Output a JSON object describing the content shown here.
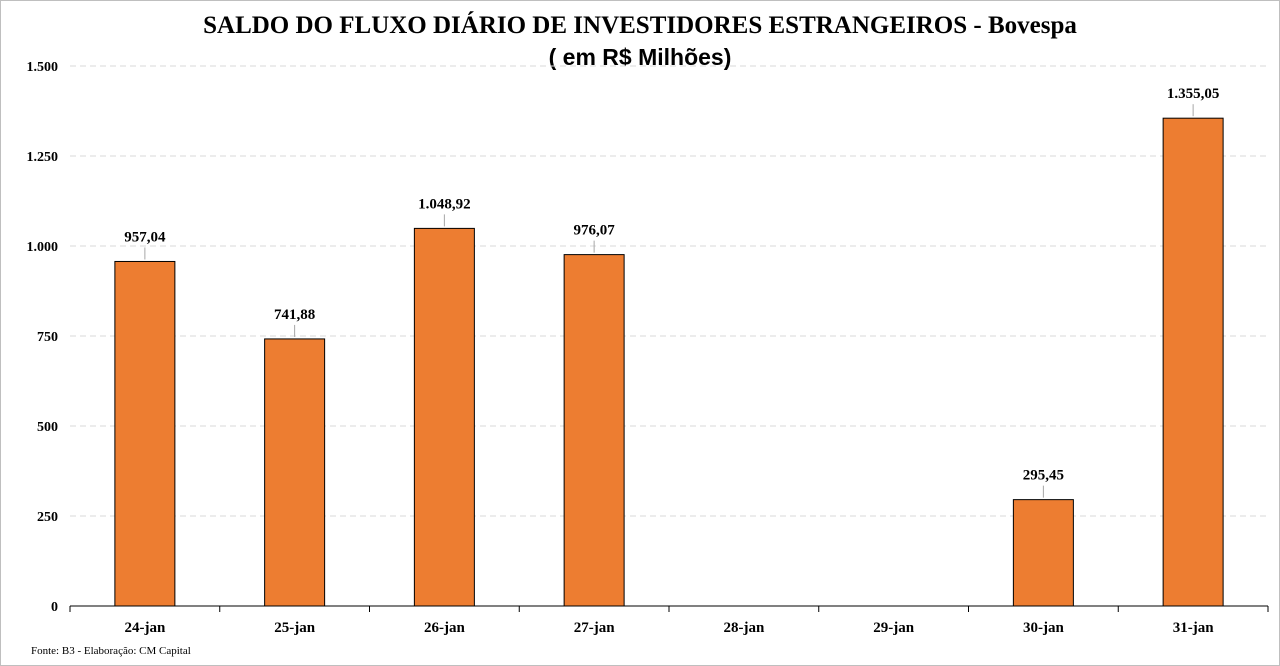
{
  "chart_data": {
    "type": "bar",
    "title": "SALDO DO FLUXO DIÁRIO DE INVESTIDORES ESTRANGEIROS - Bovespa",
    "subtitle": "( em R$ Milhões)",
    "source": "Fonte: B3 - Elaboração: CM Capital",
    "xlabel": "",
    "ylabel": "",
    "categories": [
      "24-jan",
      "25-jan",
      "26-jan",
      "27-jan",
      "28-jan",
      "29-jan",
      "30-jan",
      "31-jan"
    ],
    "values": [
      957.04,
      741.88,
      1048.92,
      976.07,
      null,
      null,
      295.45,
      1355.05
    ],
    "value_labels": [
      "957,04",
      "741,88",
      "1.048,92",
      "976,07",
      "",
      "",
      "295,45",
      "1.355,05"
    ],
    "ylim": [
      0,
      1500
    ],
    "yticks": [
      0,
      250,
      500,
      750,
      1000,
      1250,
      1500
    ],
    "ytick_labels": [
      "0",
      "250",
      "500",
      "750",
      "1.000",
      "1.250",
      "1.500"
    ],
    "grid": true,
    "legend": "none",
    "bar_color": "#ED7D31",
    "bar_edge_color": "#000000"
  }
}
